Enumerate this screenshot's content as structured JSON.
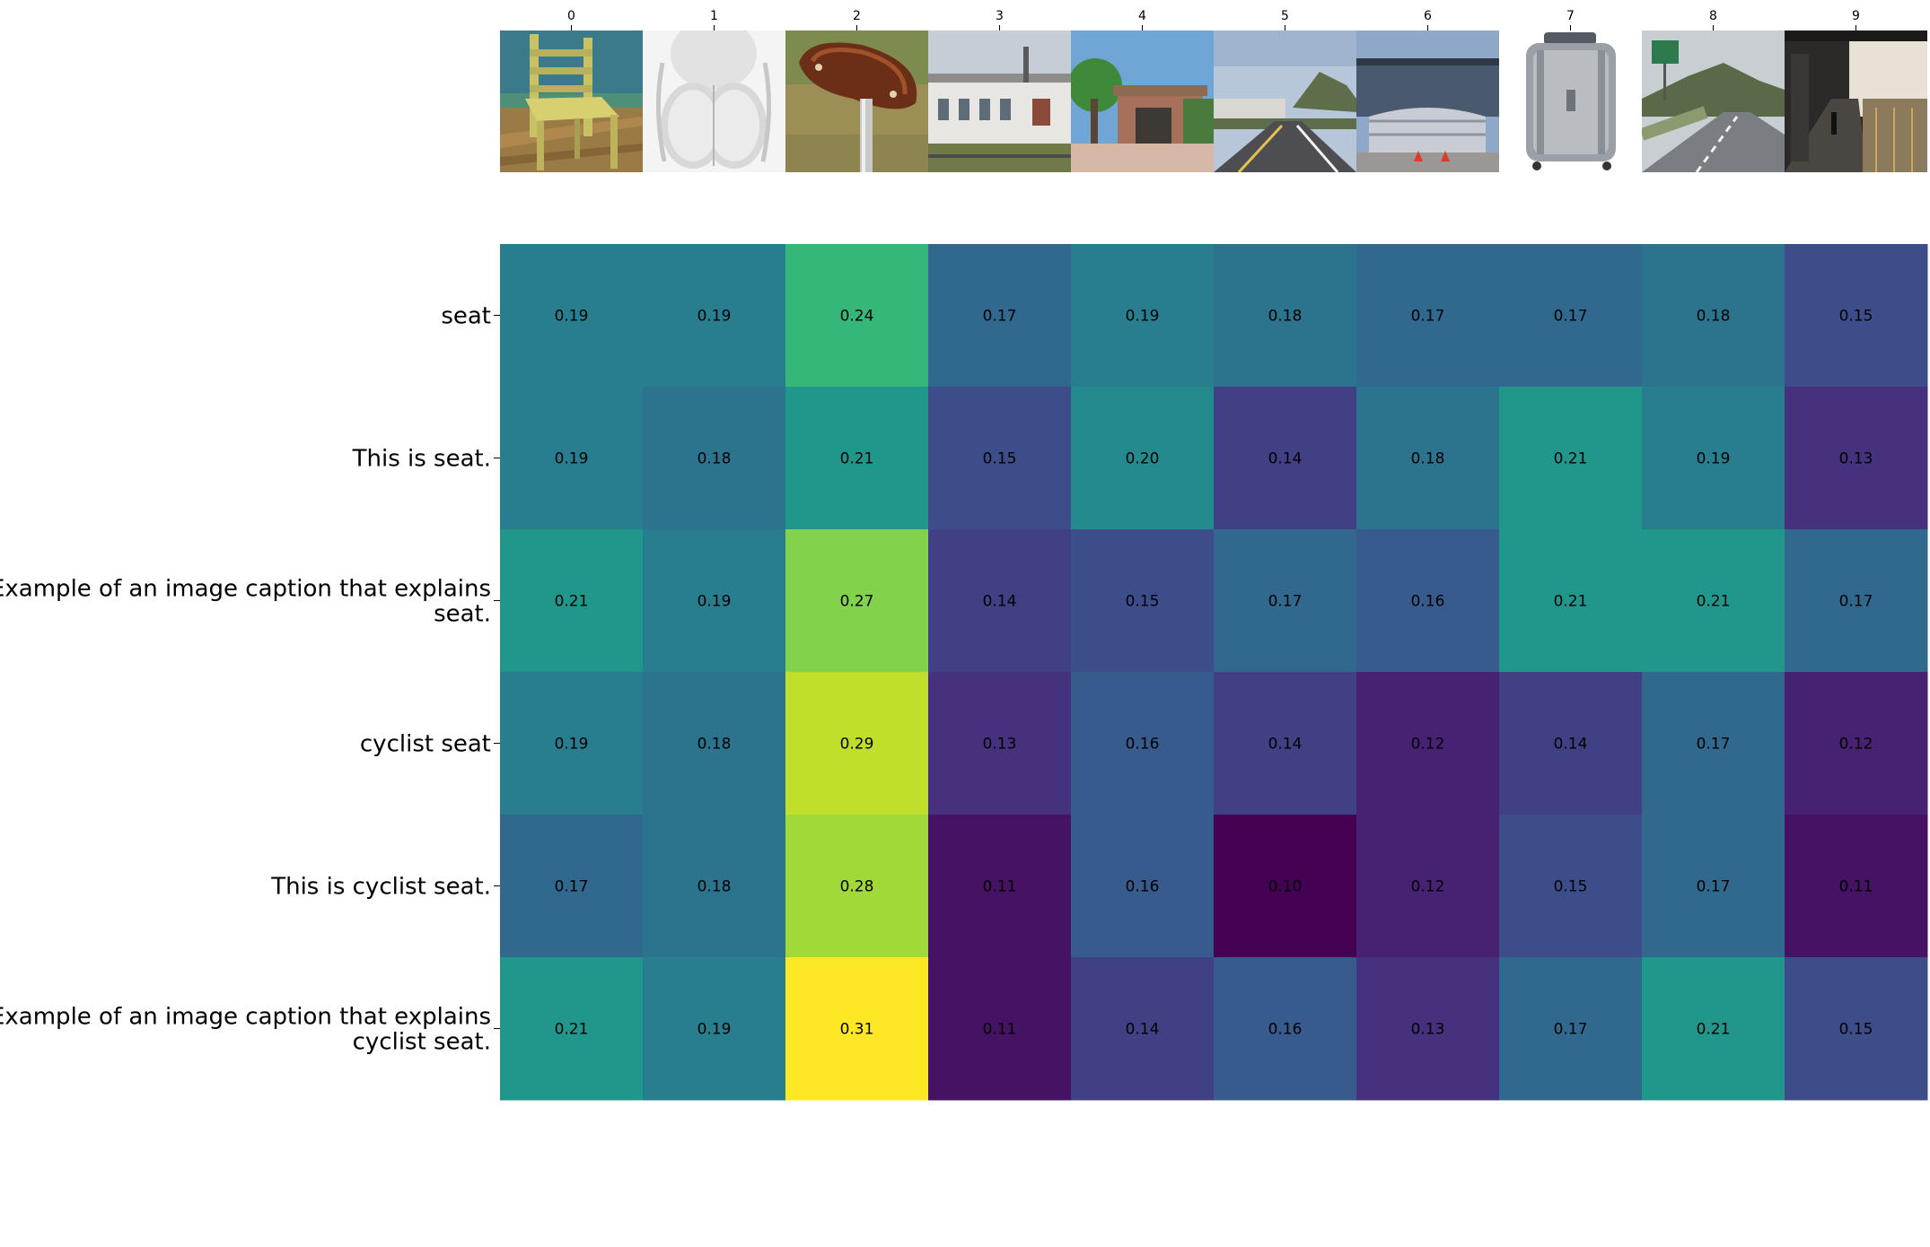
{
  "chart_data": {
    "type": "heatmap",
    "x_tick_labels": [
      "0",
      "1",
      "2",
      "3",
      "4",
      "5",
      "6",
      "7",
      "8",
      "9"
    ],
    "thumbnails": [
      {
        "index": 0,
        "subject": "painted wooden chair"
      },
      {
        "index": 1,
        "subject": "figure study"
      },
      {
        "index": 2,
        "subject": "bicycle saddle"
      },
      {
        "index": 3,
        "subject": "station building"
      },
      {
        "index": 4,
        "subject": "station entrance"
      },
      {
        "index": 5,
        "subject": "road with hills"
      },
      {
        "index": 6,
        "subject": "building with gate"
      },
      {
        "index": 7,
        "subject": "silver suitcase"
      },
      {
        "index": 8,
        "subject": "highway road"
      },
      {
        "index": 9,
        "subject": "train platform"
      }
    ],
    "rows": [
      {
        "label": [
          "seat"
        ],
        "values": [
          0.19,
          0.19,
          0.24,
          0.17,
          0.19,
          0.18,
          0.17,
          0.17,
          0.18,
          0.15
        ]
      },
      {
        "label": [
          "This is seat."
        ],
        "values": [
          0.19,
          0.18,
          0.21,
          0.15,
          0.2,
          0.14,
          0.18,
          0.21,
          0.19,
          0.13
        ]
      },
      {
        "label": [
          "Example of an image caption that explains",
          "seat."
        ],
        "values": [
          0.21,
          0.19,
          0.27,
          0.14,
          0.15,
          0.17,
          0.16,
          0.21,
          0.21,
          0.17
        ]
      },
      {
        "label": [
          "cyclist seat"
        ],
        "values": [
          0.19,
          0.18,
          0.29,
          0.13,
          0.16,
          0.14,
          0.12,
          0.14,
          0.17,
          0.12
        ]
      },
      {
        "label": [
          "This is cyclist seat."
        ],
        "values": [
          0.17,
          0.18,
          0.28,
          0.11,
          0.16,
          0.1,
          0.12,
          0.15,
          0.17,
          0.11
        ]
      },
      {
        "label": [
          "Example of an image caption that explains",
          "cyclist seat."
        ],
        "values": [
          0.21,
          0.19,
          0.31,
          0.11,
          0.14,
          0.16,
          0.13,
          0.17,
          0.21,
          0.15
        ]
      }
    ],
    "value_range": [
      0.1,
      0.31
    ],
    "colormap": "viridis",
    "colormap_stops": [
      "#440154",
      "#482878",
      "#3e4989",
      "#31688e",
      "#26828e",
      "#1f9e89",
      "#35b779",
      "#6ece58",
      "#b5de2b",
      "#fde725"
    ],
    "grid": false,
    "legend": "none",
    "title": "",
    "xlabel": "",
    "ylabel": ""
  }
}
